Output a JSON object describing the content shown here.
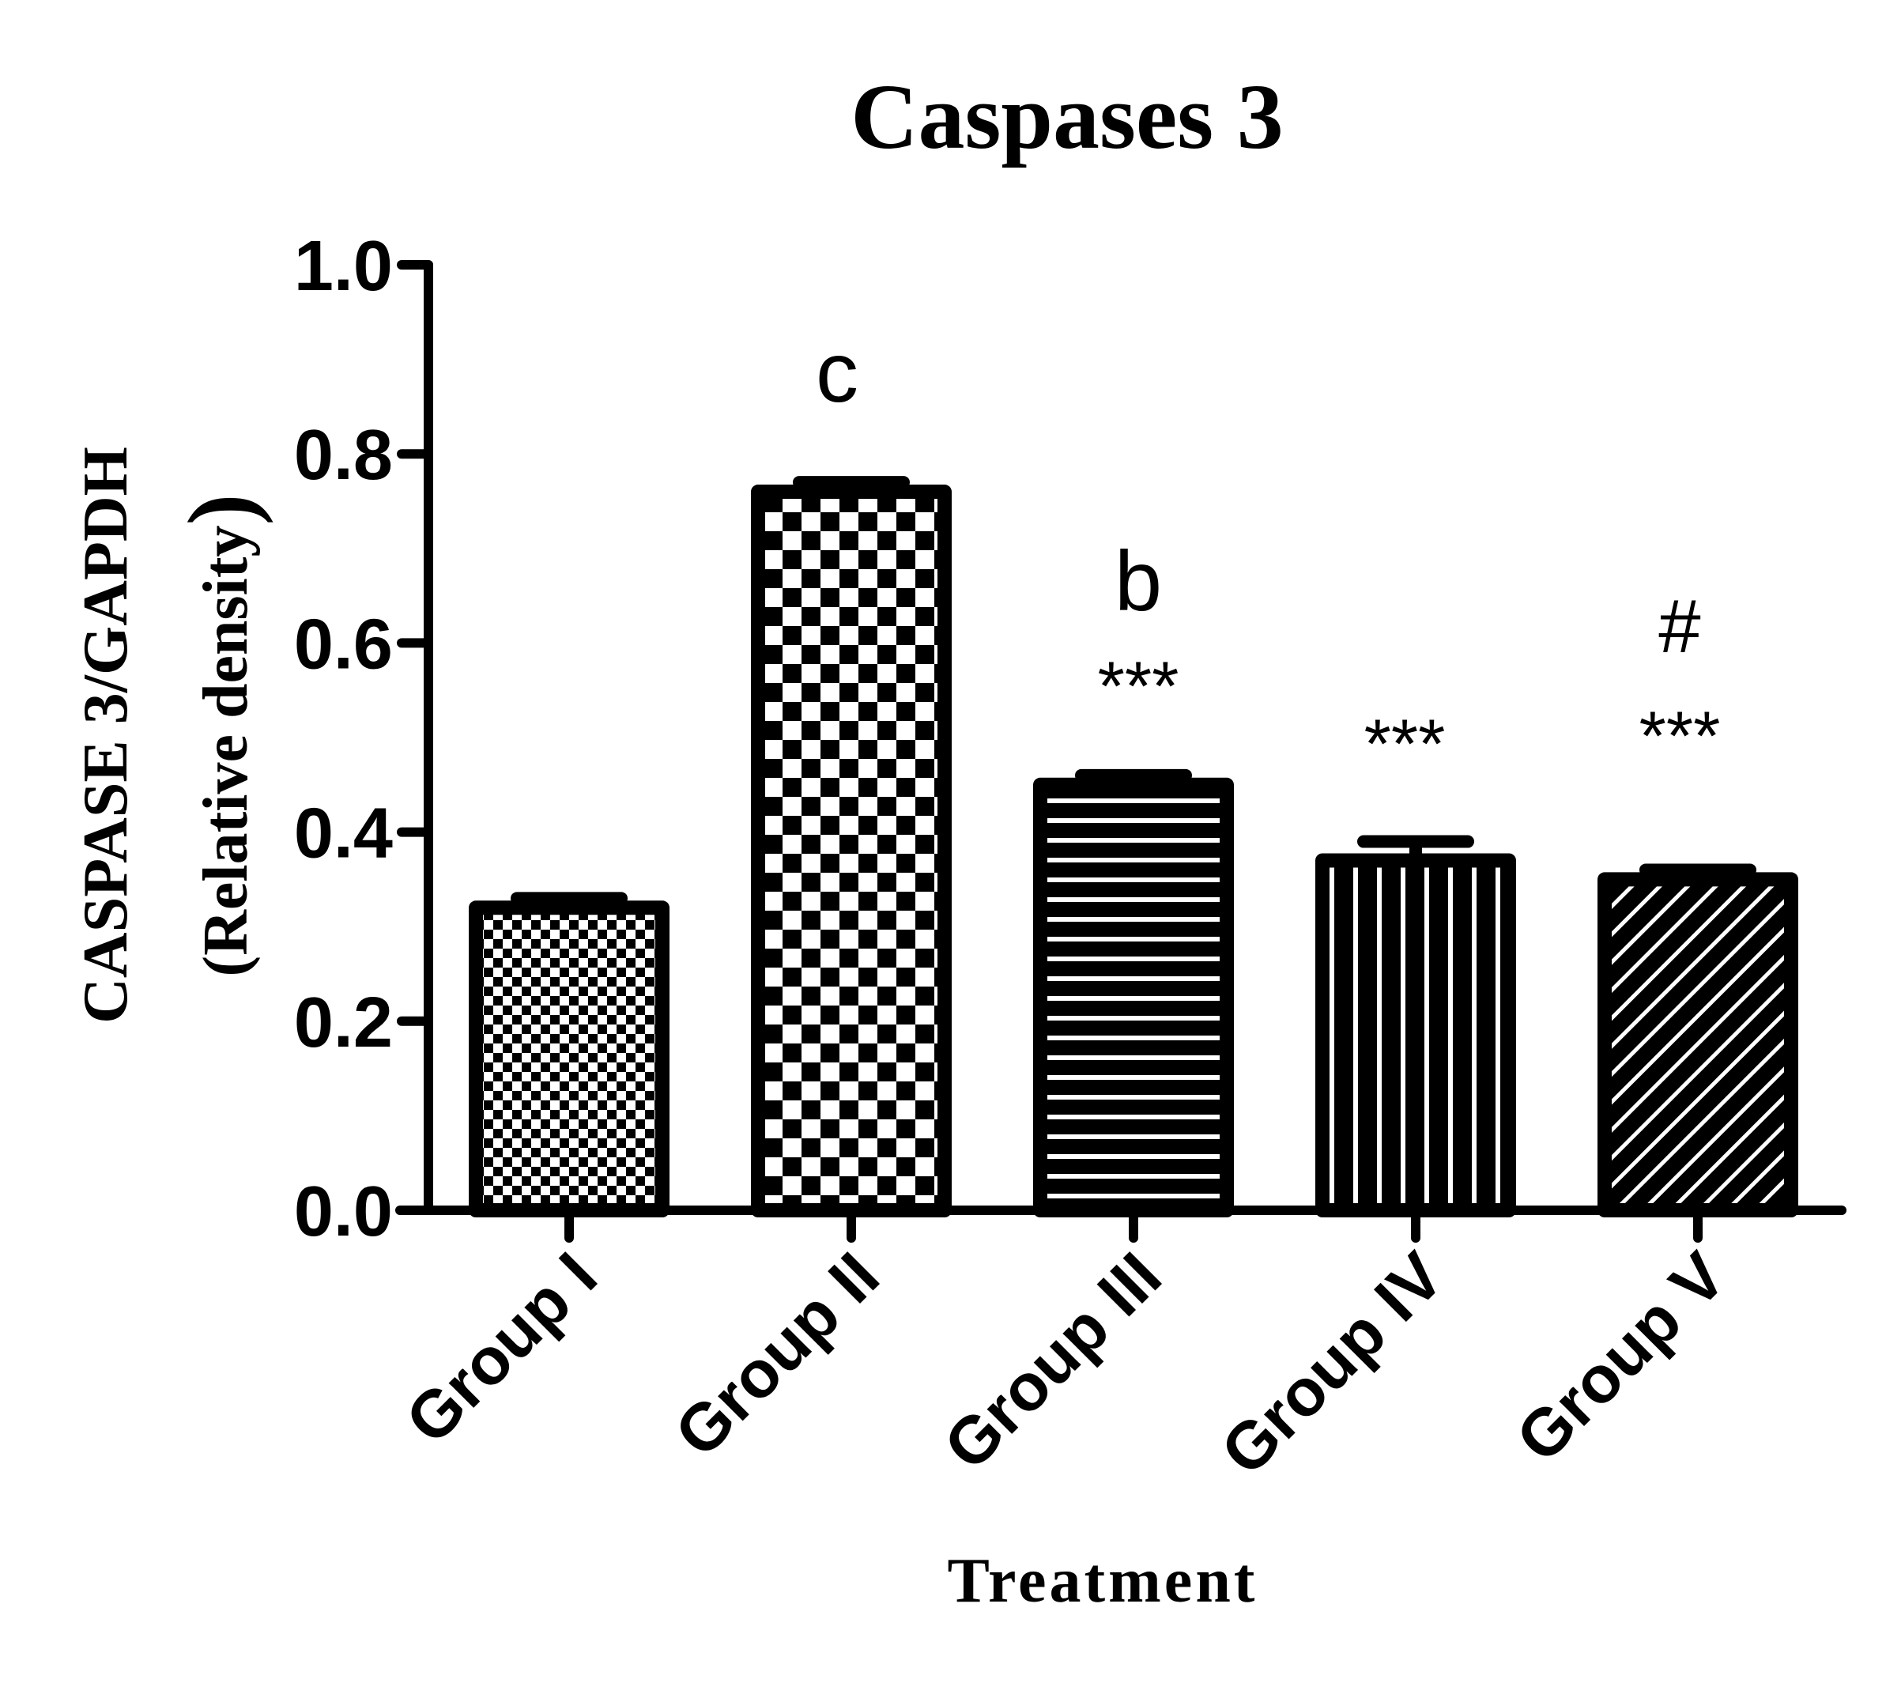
{
  "chart_data": {
    "type": "bar",
    "title": "Caspases 3",
    "xlabel": "Treatment",
    "ylabel_line1": "CASPASE 3/GAPDH",
    "ylabel_line2": "(Relative density",
    "ylabel_line2_close": ")",
    "ylim": [
      0,
      1.0
    ],
    "yticks": [
      0.0,
      0.2,
      0.4,
      0.6,
      0.8,
      1.0
    ],
    "ytick_labels": [
      "0.0",
      "0.2",
      "0.4",
      "0.6",
      "0.8",
      "1.0"
    ],
    "grid": false,
    "legend": "none",
    "categories": [
      "Group I",
      "Group II",
      "Group III",
      "Group IV",
      "Group V"
    ],
    "values": [
      0.32,
      0.76,
      0.45,
      0.37,
      0.35
    ],
    "errors": [
      0.01,
      0.01,
      0.01,
      0.02,
      0.01
    ],
    "patterns": [
      "fine-checker",
      "coarse-checker",
      "horizontal-lines",
      "vertical-lines",
      "diagonal-hatch"
    ],
    "annotations": [
      {
        "category": "Group II",
        "lines": [
          "c"
        ]
      },
      {
        "category": "Group III",
        "lines": [
          "b",
          "***"
        ]
      },
      {
        "category": "Group IV",
        "lines": [
          "***"
        ]
      },
      {
        "category": "Group V",
        "lines": [
          "#",
          "***"
        ]
      }
    ],
    "colors": {
      "bar_outline": "#000000",
      "fill_light": "#ffffff",
      "axis": "#000000"
    }
  }
}
